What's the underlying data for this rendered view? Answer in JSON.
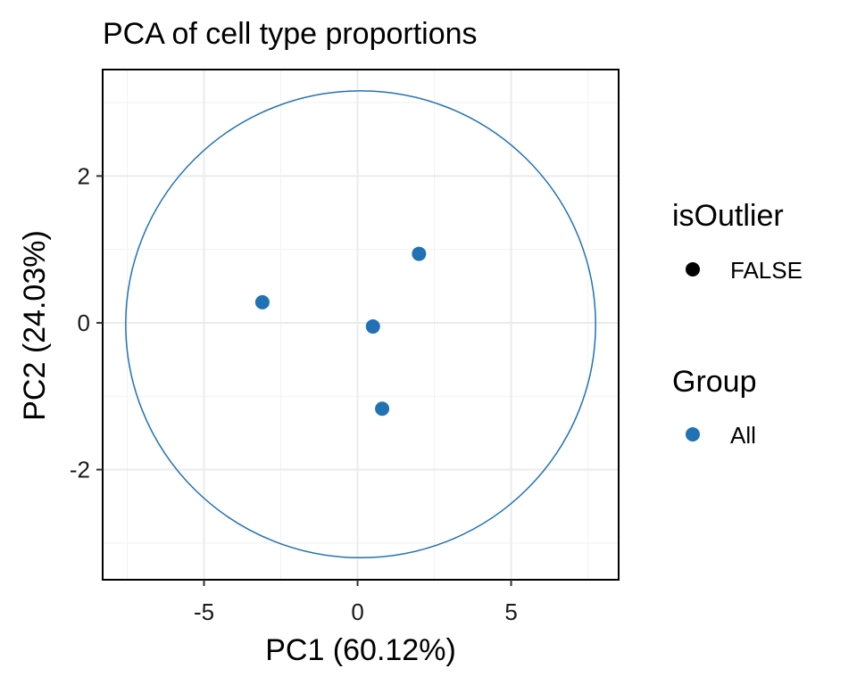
{
  "chart_data": {
    "type": "scatter",
    "title": "PCA of cell type proportions",
    "xlabel": "PC1 (60.12%)",
    "ylabel": "PC2 (24.03%)",
    "xlim": [
      -8.3,
      8.5
    ],
    "ylim": [
      -3.5,
      3.45
    ],
    "x_ticks": [
      -5,
      0,
      5
    ],
    "x_tick_labels": [
      "-5",
      "0",
      "5"
    ],
    "y_ticks": [
      -2,
      0,
      2
    ],
    "y_tick_labels": [
      "-2",
      "0",
      "2"
    ],
    "grid": true,
    "series": [
      {
        "group": "All",
        "color": "#2171b5",
        "points": [
          {
            "x": -3.1,
            "y": 0.28
          },
          {
            "x": 0.5,
            "y": -0.05
          },
          {
            "x": 2.0,
            "y": 0.94
          },
          {
            "x": 0.8,
            "y": -1.17
          }
        ]
      }
    ],
    "ellipse": {
      "center": [
        0.1,
        -0.02
      ],
      "radius_x": 7.65,
      "radius_y": 3.18,
      "color": "#2171b5"
    },
    "legend": {
      "placement": "right",
      "groups": [
        {
          "title": "isOutlier",
          "entries": [
            {
              "label": "FALSE",
              "color": "#000000"
            }
          ]
        },
        {
          "title": "Group",
          "entries": [
            {
              "label": "All",
              "color": "#2171b5"
            }
          ]
        }
      ]
    }
  }
}
